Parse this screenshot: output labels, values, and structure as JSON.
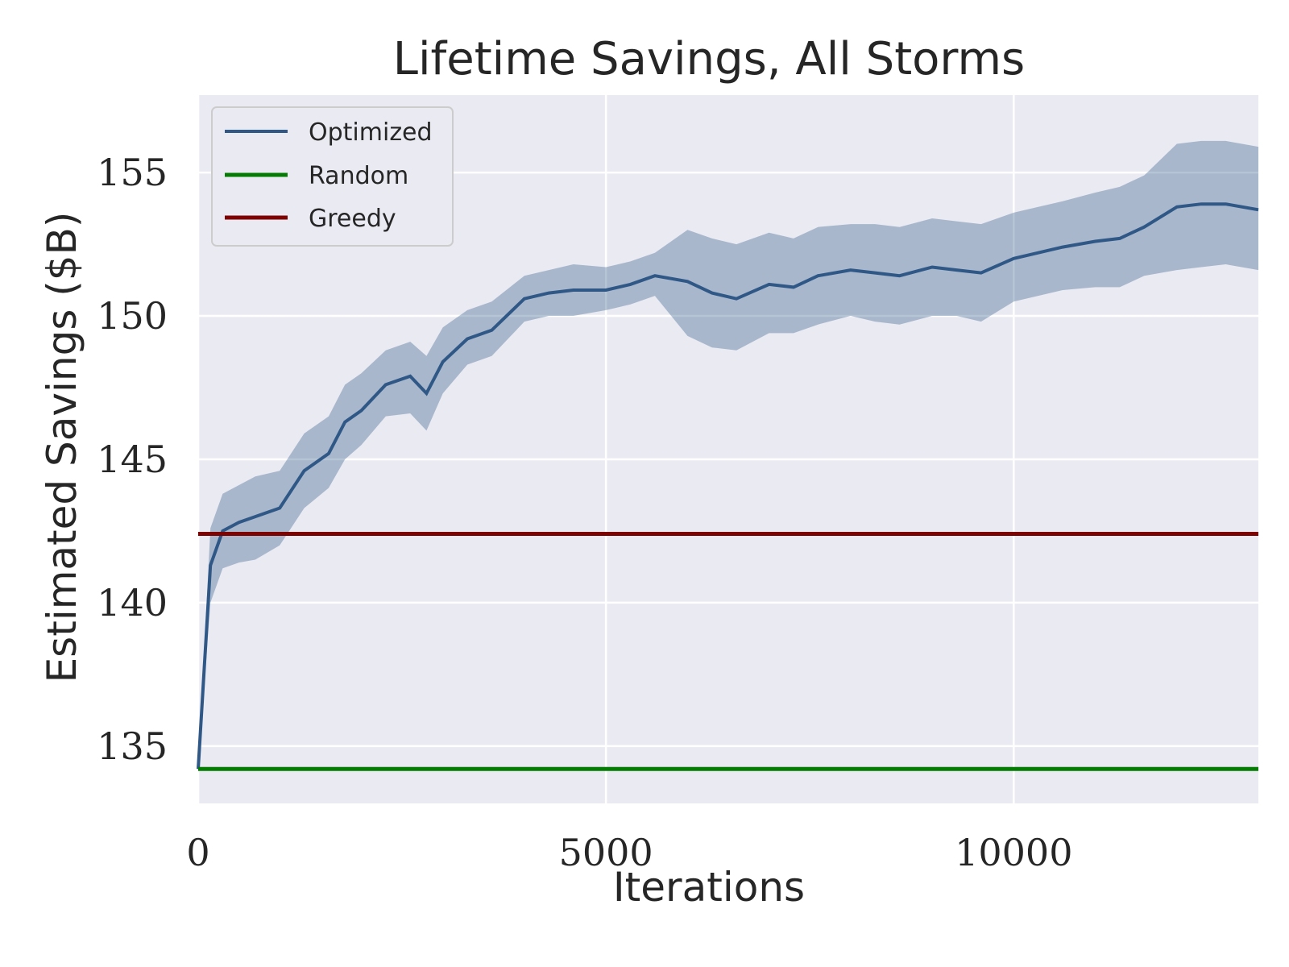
{
  "chart_data": {
    "type": "line",
    "title": "Lifetime Savings, All Storms",
    "xlabel": "Iterations",
    "ylabel": "Estimated Savings ($B)",
    "xlim": [
      0,
      13000
    ],
    "ylim": [
      133,
      157.7
    ],
    "xticks": [
      0,
      5000,
      10000
    ],
    "xtick_labels": [
      "0",
      "5000",
      "10000"
    ],
    "yticks": [
      135,
      140,
      145,
      150,
      155
    ],
    "ytick_labels": [
      "135",
      "140",
      "145",
      "150",
      "155"
    ],
    "grid": true,
    "legend_position": "top-left",
    "colors": {
      "background": "#eaeaf2",
      "grid": "#ffffff",
      "optimized": "#2f5886",
      "band": "#2f5886",
      "random": "#047c04",
      "greedy": "#7d0303"
    },
    "series": [
      {
        "name": "Optimized",
        "kind": "line_with_band",
        "x": [
          0,
          150,
          300,
          500,
          700,
          1000,
          1300,
          1600,
          1800,
          2000,
          2300,
          2600,
          2800,
          3000,
          3300,
          3600,
          4000,
          4300,
          4600,
          5000,
          5300,
          5600,
          6000,
          6300,
          6600,
          7000,
          7300,
          7600,
          8000,
          8300,
          8600,
          9000,
          9300,
          9600,
          10000,
          10300,
          10600,
          11000,
          11300,
          11600,
          12000,
          12300,
          12600,
          13000
        ],
        "values": [
          134.2,
          141.3,
          142.5,
          142.8,
          143.0,
          143.3,
          144.6,
          145.2,
          146.3,
          146.7,
          147.6,
          147.9,
          147.3,
          148.4,
          149.2,
          149.5,
          150.6,
          150.8,
          150.9,
          150.9,
          151.1,
          151.4,
          151.2,
          150.8,
          150.6,
          151.1,
          151.0,
          151.4,
          151.6,
          151.5,
          151.4,
          151.7,
          151.6,
          151.5,
          152.0,
          152.2,
          152.4,
          152.6,
          152.7,
          153.1,
          153.8,
          153.9,
          153.9,
          153.7
        ],
        "lower": [
          134.2,
          140.0,
          141.2,
          141.4,
          141.5,
          142.0,
          143.3,
          144.0,
          145.0,
          145.5,
          146.5,
          146.6,
          146.0,
          147.3,
          148.3,
          148.6,
          149.8,
          150.0,
          150.0,
          150.2,
          150.4,
          150.7,
          149.3,
          148.9,
          148.8,
          149.4,
          149.4,
          149.7,
          150.0,
          149.8,
          149.7,
          150.0,
          150.0,
          149.8,
          150.5,
          150.7,
          150.9,
          151.0,
          151.0,
          151.4,
          151.6,
          151.7,
          151.8,
          151.6
        ],
        "upper": [
          134.2,
          142.6,
          143.8,
          144.1,
          144.4,
          144.6,
          145.9,
          146.5,
          147.6,
          148.0,
          148.8,
          149.1,
          148.6,
          149.6,
          150.2,
          150.5,
          151.4,
          151.6,
          151.8,
          151.7,
          151.9,
          152.2,
          153.0,
          152.7,
          152.5,
          152.9,
          152.7,
          153.1,
          153.2,
          153.2,
          153.1,
          153.4,
          153.3,
          153.2,
          153.6,
          153.8,
          154.0,
          154.3,
          154.5,
          154.9,
          156.0,
          156.1,
          156.1,
          155.9
        ]
      },
      {
        "name": "Random",
        "kind": "hline",
        "y": 134.2
      },
      {
        "name": "Greedy",
        "kind": "hline",
        "y": 142.4
      }
    ]
  }
}
